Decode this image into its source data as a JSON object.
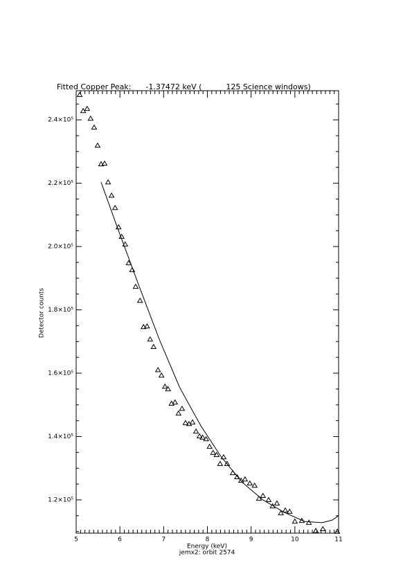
{
  "chart_data": {
    "type": "scatter",
    "title": "Fitted Copper Peak:      -1.37472 keV (          125 Science windows)",
    "x_label": "Energy (keV)",
    "subtitle": "jemx2: orbit 2574",
    "y_label": "Detector counts",
    "xlim": [
      5,
      11
    ],
    "xticks": [
      5,
      6,
      7,
      8,
      9,
      10,
      11
    ],
    "x_minor_per_major": 10,
    "ylim": [
      109500,
      249200
    ],
    "yticks": [
      {
        "value": 120000,
        "label": "1.2×10⁵"
      },
      {
        "value": 140000,
        "label": "1.4×10⁵"
      },
      {
        "value": 160000,
        "label": "1.6×10⁵"
      },
      {
        "value": 180000,
        "label": "1.8×10⁵"
      },
      {
        "value": 200000,
        "label": "2.0×10⁵"
      },
      {
        "value": 220000,
        "label": "2.2×10⁵"
      },
      {
        "value": 240000,
        "label": "2.4×10⁵"
      }
    ],
    "y_minor_per_major": 4,
    "series": [
      {
        "style": "triangle",
        "color": "#000000",
        "x": [
          5.08,
          5.16,
          5.25,
          5.33,
          5.41,
          5.49,
          5.57,
          5.65,
          5.73,
          5.81,
          5.89,
          5.97,
          6.04,
          6.12,
          6.2,
          6.28,
          6.36,
          6.46,
          6.54,
          6.62,
          6.69,
          6.77,
          6.87,
          6.95,
          7.03,
          7.1,
          7.18,
          7.26,
          7.34,
          7.42,
          7.5,
          7.58,
          7.66,
          7.74,
          7.82,
          7.89,
          7.97,
          8.05,
          8.13,
          8.21,
          8.29,
          8.37,
          8.45,
          8.58,
          8.68,
          8.77,
          8.86,
          8.97,
          9.08,
          9.18,
          9.27,
          9.4,
          9.49,
          9.59,
          9.68,
          9.78,
          9.88,
          10.0,
          10.16,
          10.32,
          10.48,
          10.64,
          10.97
        ],
        "values": [
          247900,
          242800,
          243500,
          240400,
          237600,
          231900,
          226000,
          226200,
          220300,
          216100,
          212200,
          206100,
          203100,
          200700,
          194800,
          192600,
          187300,
          182900,
          174600,
          174800,
          170700,
          168300,
          161000,
          159300,
          155800,
          155000,
          150400,
          150800,
          147300,
          148800,
          144300,
          144000,
          144500,
          141600,
          140100,
          139700,
          139200,
          136800,
          134900,
          134200,
          131400,
          133500,
          131400,
          128500,
          127200,
          126100,
          126500,
          125200,
          124500,
          120400,
          121300,
          120000,
          118000,
          118900,
          115800,
          116700,
          116300,
          113200,
          113400,
          112800,
          110200,
          110800,
          110000
        ]
      },
      {
        "style": "line",
        "color": "#000000",
        "x": [
          5.57,
          5.95,
          6.42,
          6.9,
          7.37,
          7.85,
          8.32,
          8.8,
          9.27,
          9.75,
          10.22,
          10.62,
          10.85,
          11.0
        ],
        "values": [
          220300,
          205700,
          188200,
          170700,
          155400,
          143400,
          133500,
          125500,
          120000,
          116100,
          113200,
          112800,
          113600,
          115000
        ]
      }
    ]
  }
}
